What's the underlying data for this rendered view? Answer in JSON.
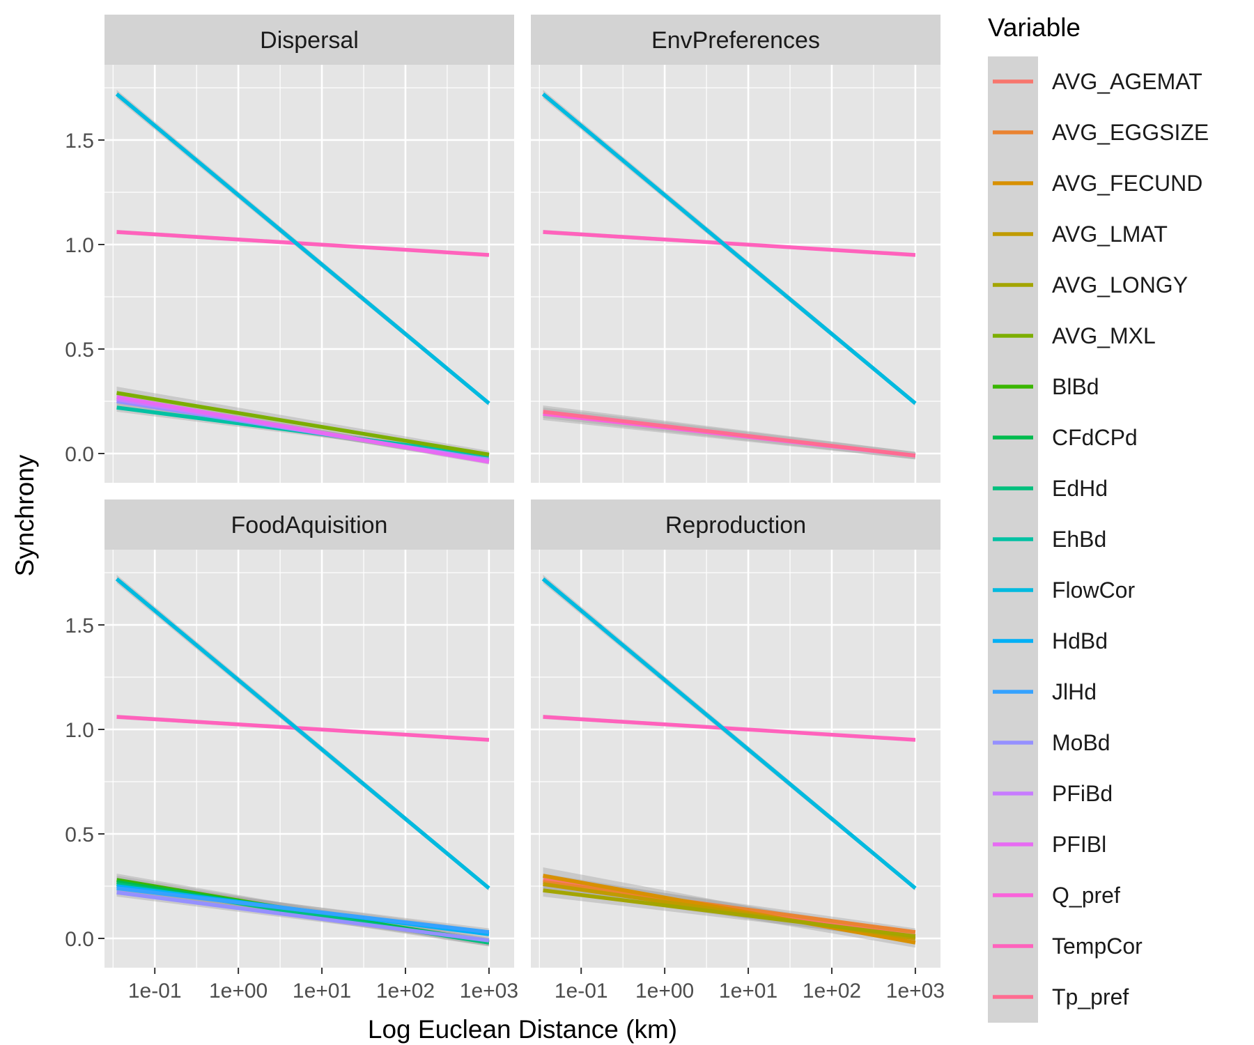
{
  "colors": {
    "panel_bg": "#E5E5E5",
    "strip_bg": "#D3D3D3",
    "grid": "#FFFFFF",
    "ribbon": "#A6A6A6",
    "axis_text": "#4D4D4D",
    "title_text": "#000000"
  },
  "chart_data": {
    "type": "line",
    "subtype": "faceted linear fits with confidence ribbons",
    "xlabel": "Log Euclean Distance (km)",
    "ylabel": "Synchrony",
    "x_scale": "log10",
    "xlim": [
      0.025,
      2000
    ],
    "ylim": [
      -0.14,
      1.86
    ],
    "x_ticks": [
      0.1,
      1,
      10,
      100,
      1000
    ],
    "x_tick_labels": [
      "1e-01",
      "1e+00",
      "1e+01",
      "1e+02",
      "1e+03"
    ],
    "y_ticks": [
      0,
      0.5,
      1,
      1.5
    ],
    "y_tick_labels": [
      "0.0",
      "0.5",
      "1.0",
      "1.5"
    ],
    "grid": true,
    "legend": {
      "title": "Variable",
      "position": "right",
      "entries": [
        {
          "name": "AVG_AGEMAT",
          "color": "#F8766D"
        },
        {
          "name": "AVG_EGGSIZE",
          "color": "#EA8331"
        },
        {
          "name": "AVG_FECUND",
          "color": "#D89000"
        },
        {
          "name": "AVG_LMAT",
          "color": "#C09B00"
        },
        {
          "name": "AVG_LONGY",
          "color": "#A3A500"
        },
        {
          "name": "AVG_MXL",
          "color": "#7CAE00"
        },
        {
          "name": "BlBd",
          "color": "#39B600"
        },
        {
          "name": "CFdCPd",
          "color": "#00BB4E"
        },
        {
          "name": "EdHd",
          "color": "#00BF7D"
        },
        {
          "name": "EhBd",
          "color": "#00C1A3"
        },
        {
          "name": "FlowCor",
          "color": "#00BAE0"
        },
        {
          "name": "HdBd",
          "color": "#00B0F6"
        },
        {
          "name": "JlHd",
          "color": "#35A2FF"
        },
        {
          "name": "MoBd",
          "color": "#9590FF"
        },
        {
          "name": "PFiBd",
          "color": "#C77CFF"
        },
        {
          "name": "PFIBl",
          "color": "#E76BF3"
        },
        {
          "name": "Q_pref",
          "color": "#FA62DB"
        },
        {
          "name": "TempCor",
          "color": "#FF62BC"
        },
        {
          "name": "Tp_pref",
          "color": "#FF6C91"
        }
      ]
    },
    "facets": [
      {
        "title": "Dispersal",
        "series": [
          {
            "name": "EhBd",
            "x": [
              0.035,
              1000
            ],
            "y": [
              0.22,
              -0.01
            ],
            "ci": 0.02
          },
          {
            "name": "MoBd",
            "x": [
              0.035,
              1000
            ],
            "y": [
              0.25,
              -0.03
            ],
            "ci": 0.02
          },
          {
            "name": "PFiBd",
            "x": [
              0.035,
              1000
            ],
            "y": [
              0.26,
              -0.035
            ],
            "ci": 0.02
          },
          {
            "name": "PFIBl",
            "x": [
              0.035,
              1000
            ],
            "y": [
              0.27,
              -0.04
            ],
            "ci": 0.02
          },
          {
            "name": "AVG_MXL",
            "x": [
              0.035,
              1000
            ],
            "y": [
              0.29,
              -0.005
            ],
            "ci": 0.03
          },
          {
            "name": "TempCor",
            "x": [
              0.035,
              1000
            ],
            "y": [
              1.06,
              0.95
            ],
            "ci": 0.01
          },
          {
            "name": "FlowCor",
            "x": [
              0.035,
              1000
            ],
            "y": [
              1.72,
              0.24
            ],
            "ci": 0.02
          }
        ]
      },
      {
        "title": "EnvPreferences",
        "series": [
          {
            "name": "Q_pref",
            "x": [
              0.035,
              1000
            ],
            "y": [
              0.19,
              -0.01
            ],
            "ci": 0.03
          },
          {
            "name": "Tp_pref",
            "x": [
              0.035,
              1000
            ],
            "y": [
              0.2,
              -0.01
            ],
            "ci": 0.03
          },
          {
            "name": "TempCor",
            "x": [
              0.035,
              1000
            ],
            "y": [
              1.06,
              0.95
            ],
            "ci": 0.01
          },
          {
            "name": "FlowCor",
            "x": [
              0.035,
              1000
            ],
            "y": [
              1.72,
              0.24
            ],
            "ci": 0.02
          }
        ]
      },
      {
        "title": "FoodAquisition",
        "series": [
          {
            "name": "BlBd",
            "x": [
              0.035,
              1000
            ],
            "y": [
              0.28,
              -0.02
            ],
            "ci": 0.03
          },
          {
            "name": "CFdCPd",
            "x": [
              0.035,
              1000
            ],
            "y": [
              0.27,
              -0.015
            ],
            "ci": 0.03
          },
          {
            "name": "EdHd",
            "x": [
              0.035,
              1000
            ],
            "y": [
              0.26,
              -0.02
            ],
            "ci": 0.03
          },
          {
            "name": "HdBd",
            "x": [
              0.035,
              1000
            ],
            "y": [
              0.25,
              0.02
            ],
            "ci": 0.03
          },
          {
            "name": "JlHd",
            "x": [
              0.035,
              1000
            ],
            "y": [
              0.24,
              0.03
            ],
            "ci": 0.03
          },
          {
            "name": "MoBd",
            "x": [
              0.035,
              1000
            ],
            "y": [
              0.22,
              -0.01
            ],
            "ci": 0.02
          },
          {
            "name": "TempCor",
            "x": [
              0.035,
              1000
            ],
            "y": [
              1.06,
              0.95
            ],
            "ci": 0.01
          },
          {
            "name": "FlowCor",
            "x": [
              0.035,
              1000
            ],
            "y": [
              1.72,
              0.24
            ],
            "ci": 0.02
          }
        ]
      },
      {
        "title": "Reproduction",
        "series": [
          {
            "name": "AVG_AGEMAT",
            "x": [
              0.035,
              1000
            ],
            "y": [
              0.28,
              0.01
            ],
            "ci": 0.03
          },
          {
            "name": "AVG_EGGSIZE",
            "x": [
              0.035,
              1000
            ],
            "y": [
              0.27,
              0.03
            ],
            "ci": 0.03
          },
          {
            "name": "AVG_FECUND",
            "x": [
              0.035,
              1000
            ],
            "y": [
              0.3,
              -0.02
            ],
            "ci": 0.04
          },
          {
            "name": "AVG_LMAT",
            "x": [
              0.035,
              1000
            ],
            "y": [
              0.26,
              0.0
            ],
            "ci": 0.03
          },
          {
            "name": "AVG_LONGY",
            "x": [
              0.035,
              1000
            ],
            "y": [
              0.23,
              0.01
            ],
            "ci": 0.03
          },
          {
            "name": "TempCor",
            "x": [
              0.035,
              1000
            ],
            "y": [
              1.06,
              0.95
            ],
            "ci": 0.01
          },
          {
            "name": "FlowCor",
            "x": [
              0.035,
              1000
            ],
            "y": [
              1.72,
              0.24
            ],
            "ci": 0.02
          }
        ]
      }
    ]
  }
}
